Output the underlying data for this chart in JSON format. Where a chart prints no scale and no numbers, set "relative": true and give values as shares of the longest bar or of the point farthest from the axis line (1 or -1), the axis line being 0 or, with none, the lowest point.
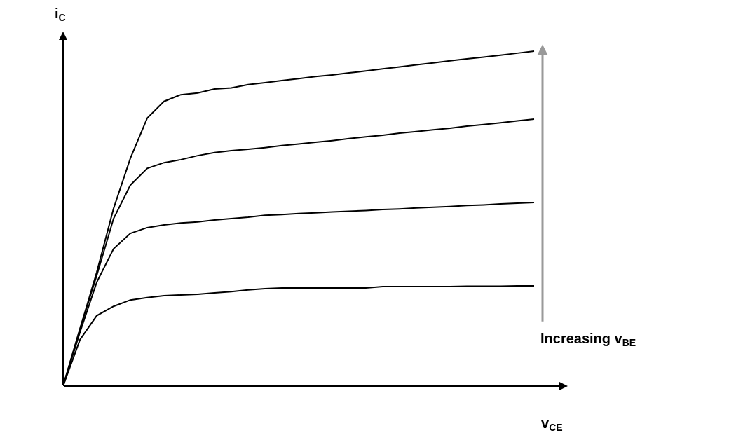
{
  "chart_data": {
    "type": "line",
    "relative": true,
    "xlabel": "v$_{CE}$",
    "ylabel": "i$_{C}$",
    "categories": [
      null,
      null,
      null,
      null,
      null,
      null,
      null,
      null,
      null,
      null,
      null,
      null,
      null,
      null,
      null,
      null,
      null,
      null,
      null,
      null,
      null,
      null,
      null,
      null,
      null,
      null,
      null,
      null,
      null
    ],
    "series": [
      {
        "color": "#000000",
        "values": [
          0,
          0.17,
          0.34,
          0.53,
          0.68,
          0.8,
          0.85,
          0.87,
          0.875,
          0.887,
          0.89,
          0.9,
          0.906,
          0.912,
          0.918,
          0.924,
          0.929,
          0.935,
          0.941,
          0.947,
          0.953,
          0.959,
          0.965,
          0.971,
          0.977,
          0.982,
          0.988,
          0.994,
          1
        ]
      },
      {
        "color": "#000000",
        "values": [
          0,
          0.17,
          0.33,
          0.5,
          0.6,
          0.65,
          0.667,
          0.676,
          0.688,
          0.697,
          0.703,
          0.707,
          0.712,
          0.718,
          0.723,
          0.728,
          0.733,
          0.739,
          0.744,
          0.749,
          0.755,
          0.76,
          0.765,
          0.77,
          0.776,
          0.781,
          0.786,
          0.792,
          0.797
        ]
      },
      {
        "color": "#000000",
        "values": [
          0,
          0.16,
          0.31,
          0.41,
          0.456,
          0.473,
          0.481,
          0.487,
          0.49,
          0.496,
          0.5,
          0.504,
          0.51,
          0.512,
          0.515,
          0.517,
          0.52,
          0.522,
          0.524,
          0.527,
          0.529,
          0.532,
          0.534,
          0.536,
          0.539,
          0.541,
          0.544,
          0.546,
          0.548
        ]
      },
      {
        "color": "#000000",
        "values": [
          0,
          0.138,
          0.21,
          0.238,
          0.257,
          0.264,
          0.27,
          0.272,
          0.274,
          0.278,
          0.282,
          0.287,
          0.291,
          0.293,
          0.293,
          0.293,
          0.293,
          0.293,
          0.293,
          0.297,
          0.297,
          0.297,
          0.297,
          0.297,
          0.298,
          0.298,
          0.298,
          0.299,
          0.299
        ]
      }
    ],
    "annotations": [
      "Increasing v$_{BE}$"
    ],
    "marker": "none",
    "line_style": "solid"
  }
}
